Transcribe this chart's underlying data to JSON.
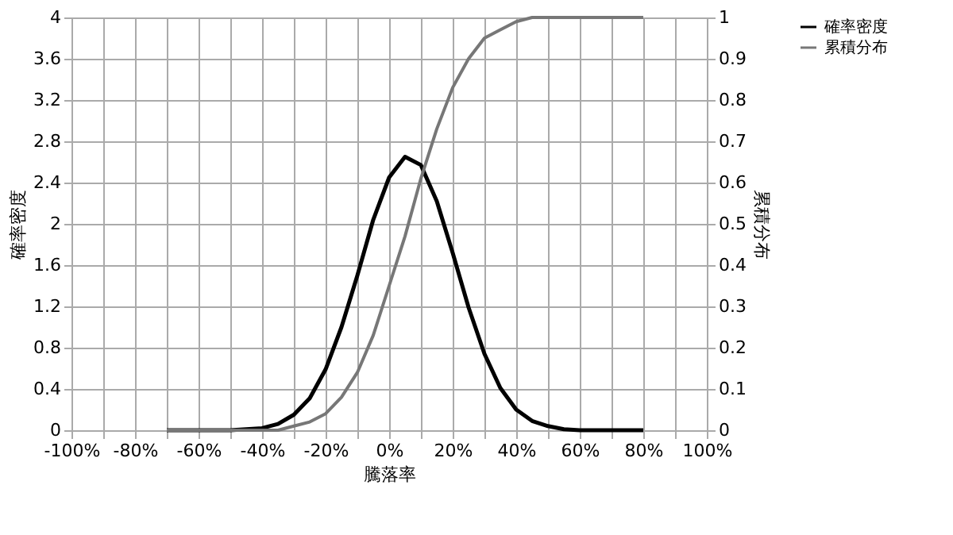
{
  "chart_data": {
    "type": "line",
    "xlabel": "騰落率",
    "ylabel": "確率密度",
    "y2label": "累積分布",
    "x": [
      -70,
      -65,
      -60,
      -55,
      -50,
      -45,
      -40,
      -35,
      -30,
      -25,
      -20,
      -15,
      -10,
      -5,
      0,
      5,
      10,
      15,
      20,
      25,
      30,
      35,
      40,
      45,
      50,
      55,
      60,
      65,
      70,
      75,
      80
    ],
    "series": [
      {
        "name": "確率密度",
        "color": "#000000",
        "values": [
          0,
          0,
          0,
          0,
          0,
          0.01,
          0.02,
          0.06,
          0.15,
          0.31,
          0.59,
          1.0,
          1.5,
          2.04,
          2.45,
          2.65,
          2.57,
          2.22,
          1.72,
          1.19,
          0.74,
          0.41,
          0.2,
          0.09,
          0.04,
          0.01,
          0,
          0,
          0,
          0,
          0
        ]
      },
      {
        "name": "累積分布",
        "color": "#777777",
        "axis": "y2",
        "values": [
          0,
          0,
          0,
          0,
          0,
          0,
          0,
          0,
          0.01,
          0.02,
          0.04,
          0.08,
          0.14,
          0.23,
          0.35,
          0.47,
          0.61,
          0.73,
          0.83,
          0.9,
          0.95,
          0.97,
          0.99,
          1,
          1,
          1,
          1,
          1,
          1,
          1,
          1
        ]
      }
    ],
    "xlim": [
      -100,
      100
    ],
    "xticks": [
      {
        "value": -100,
        "label": "-100%"
      },
      {
        "value": -90,
        "label": null
      },
      {
        "value": -80,
        "label": "-80%"
      },
      {
        "value": -70,
        "label": null
      },
      {
        "value": -60,
        "label": "-60%"
      },
      {
        "value": -50,
        "label": null
      },
      {
        "value": -40,
        "label": "-40%"
      },
      {
        "value": -30,
        "label": null
      },
      {
        "value": -20,
        "label": "-20%"
      },
      {
        "value": -10,
        "label": null
      },
      {
        "value": 0,
        "label": "0%"
      },
      {
        "value": 10,
        "label": null
      },
      {
        "value": 20,
        "label": "20%"
      },
      {
        "value": 30,
        "label": null
      },
      {
        "value": 40,
        "label": "40%"
      },
      {
        "value": 50,
        "label": null
      },
      {
        "value": 60,
        "label": "60%"
      },
      {
        "value": 70,
        "label": null
      },
      {
        "value": 80,
        "label": "80%"
      },
      {
        "value": 90,
        "label": null
      },
      {
        "value": 100,
        "label": "100%"
      }
    ],
    "ylim": [
      0,
      4
    ],
    "yticks": [
      0,
      0.4,
      0.8,
      1.2,
      1.6,
      2,
      2.4,
      2.8,
      3.2,
      3.6,
      4
    ],
    "y2lim": [
      0,
      1
    ],
    "y2ticks": [
      0,
      0.1,
      0.2,
      0.3,
      0.4,
      0.5,
      0.6,
      0.7,
      0.8,
      0.9,
      1
    ],
    "grid": true,
    "legend": "right",
    "marker": "none",
    "line_style": "solid"
  }
}
